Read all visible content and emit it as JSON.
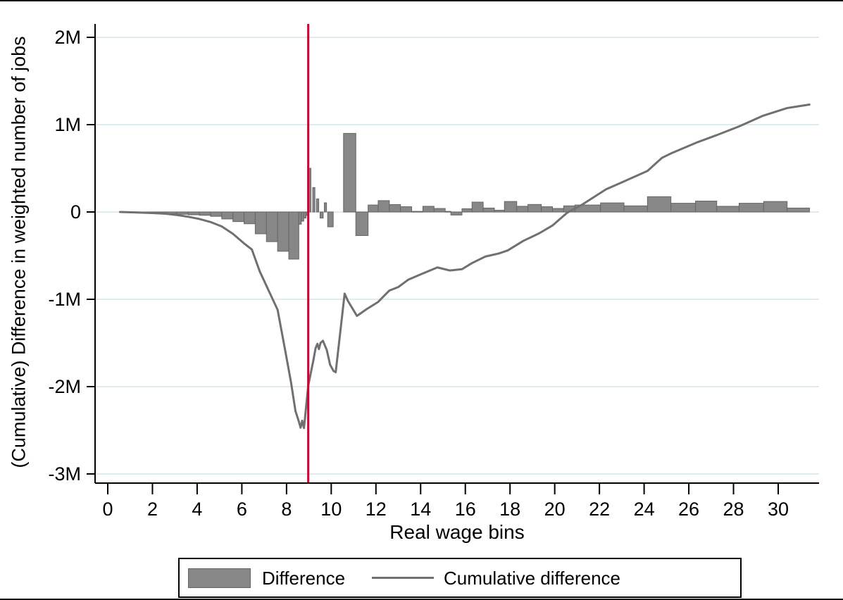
{
  "figure": {
    "y_axis_title": "(Cumulative) Difference in weighted number of jobs",
    "x_axis_title": "Real wage bins",
    "legend": {
      "bar_label": "Difference",
      "line_label": "Cumulative difference"
    }
  },
  "colors": {
    "bar_fill": "#878787",
    "bar_stroke": "#666666",
    "cumulative_line": "#707070",
    "reference_line": "#c10534",
    "grid": "#deebf0",
    "axis": "#000000",
    "text": "#000000"
  },
  "chart_data": {
    "type": "bar",
    "subtype": "histogram with cumulative line overlay",
    "title": "",
    "xlabel": "Real wage bins",
    "ylabel": "(Cumulative) Difference in weighted number of jobs",
    "units": "millions of jobs",
    "xlim": [
      -0.57,
      31.83
    ],
    "ylim": [
      -3.105,
      2.153
    ],
    "grid": true,
    "legend_position": "bottom",
    "x_ticks": [
      0,
      2,
      4,
      6,
      8,
      10,
      12,
      14,
      16,
      18,
      20,
      22,
      24,
      26,
      28,
      30
    ],
    "y_ticks": [
      {
        "value": 2,
        "label": "2M"
      },
      {
        "value": 1,
        "label": "1M"
      },
      {
        "value": 0,
        "label": "0"
      },
      {
        "value": -1,
        "label": "-1M"
      },
      {
        "value": -2,
        "label": "-2M"
      },
      {
        "value": -3,
        "label": "-3M"
      }
    ],
    "reference_line_x": 8.97,
    "series": [
      {
        "name": "Difference",
        "type": "bar"
      },
      {
        "name": "Cumulative difference",
        "type": "line"
      }
    ],
    "bars": [
      {
        "x0": 0.6,
        "x1": 1.1,
        "v": -0.008
      },
      {
        "x0": 1.1,
        "x1": 1.6,
        "v": -0.011
      },
      {
        "x0": 1.6,
        "x1": 2.1,
        "v": -0.014
      },
      {
        "x0": 2.1,
        "x1": 2.6,
        "v": -0.016
      },
      {
        "x0": 2.6,
        "x1": 3.1,
        "v": -0.02
      },
      {
        "x0": 3.1,
        "x1": 3.6,
        "v": -0.026
      },
      {
        "x0": 3.6,
        "x1": 4.1,
        "v": -0.032
      },
      {
        "x0": 4.1,
        "x1": 4.6,
        "v": -0.038
      },
      {
        "x0": 4.6,
        "x1": 5.1,
        "v": -0.05
      },
      {
        "x0": 5.1,
        "x1": 5.6,
        "v": -0.08
      },
      {
        "x0": 5.6,
        "x1": 6.1,
        "v": -0.11
      },
      {
        "x0": 6.1,
        "x1": 6.6,
        "v": -0.135
      },
      {
        "x0": 6.6,
        "x1": 7.1,
        "v": -0.25
      },
      {
        "x0": 7.1,
        "x1": 7.6,
        "v": -0.34
      },
      {
        "x0": 7.6,
        "x1": 8.1,
        "v": -0.45
      },
      {
        "x0": 8.1,
        "x1": 8.55,
        "v": -0.54
      },
      {
        "x0": 8.55,
        "x1": 8.66,
        "v": -0.14
      },
      {
        "x0": 8.66,
        "x1": 8.77,
        "v": -0.105
      },
      {
        "x0": 8.77,
        "x1": 8.87,
        "v": -0.07
      },
      {
        "x0": 8.87,
        "x1": 8.96,
        "v": -0.04
      },
      {
        "x0": 8.99,
        "x1": 9.09,
        "v": 0.5
      },
      {
        "x0": 9.17,
        "x1": 9.27,
        "v": 0.28
      },
      {
        "x0": 9.34,
        "x1": 9.44,
        "v": 0.15
      },
      {
        "x0": 9.5,
        "x1": 9.64,
        "v": -0.07
      },
      {
        "x0": 9.69,
        "x1": 9.79,
        "v": 0.105
      },
      {
        "x0": 9.84,
        "x1": 10.09,
        "v": -0.17
      },
      {
        "x0": 10.55,
        "x1": 11.1,
        "v": 0.9
      },
      {
        "x0": 11.1,
        "x1": 11.65,
        "v": -0.27
      },
      {
        "x0": 11.65,
        "x1": 12.1,
        "v": 0.08
      },
      {
        "x0": 12.1,
        "x1": 12.6,
        "v": 0.13
      },
      {
        "x0": 12.6,
        "x1": 13.1,
        "v": 0.085
      },
      {
        "x0": 13.1,
        "x1": 13.6,
        "v": 0.06
      },
      {
        "x0": 13.6,
        "x1": 14.1,
        "v": 0.007
      },
      {
        "x0": 14.1,
        "x1": 14.6,
        "v": 0.065
      },
      {
        "x0": 14.6,
        "x1": 15.1,
        "v": 0.04
      },
      {
        "x0": 15.1,
        "x1": 15.35,
        "v": 0.007
      },
      {
        "x0": 15.35,
        "x1": 15.85,
        "v": -0.035
      },
      {
        "x0": 15.85,
        "x1": 16.3,
        "v": 0.037
      },
      {
        "x0": 16.3,
        "x1": 16.8,
        "v": 0.113
      },
      {
        "x0": 16.8,
        "x1": 17.3,
        "v": 0.045
      },
      {
        "x0": 17.3,
        "x1": 17.75,
        "v": 0.02
      },
      {
        "x0": 17.75,
        "x1": 18.3,
        "v": 0.12
      },
      {
        "x0": 18.3,
        "x1": 18.8,
        "v": 0.065
      },
      {
        "x0": 18.8,
        "x1": 19.4,
        "v": 0.086
      },
      {
        "x0": 19.4,
        "x1": 19.9,
        "v": 0.06
      },
      {
        "x0": 19.9,
        "x1": 20.4,
        "v": 0.04
      },
      {
        "x0": 20.4,
        "x1": 20.9,
        "v": 0.07
      },
      {
        "x0": 20.9,
        "x1": 22.05,
        "v": 0.08
      },
      {
        "x0": 22.05,
        "x1": 23.1,
        "v": 0.104
      },
      {
        "x0": 23.1,
        "x1": 24.15,
        "v": 0.07
      },
      {
        "x0": 24.15,
        "x1": 25.2,
        "v": 0.175
      },
      {
        "x0": 25.2,
        "x1": 26.3,
        "v": 0.1
      },
      {
        "x0": 26.3,
        "x1": 27.25,
        "v": 0.125
      },
      {
        "x0": 27.25,
        "x1": 28.25,
        "v": 0.065
      },
      {
        "x0": 28.25,
        "x1": 29.35,
        "v": 0.1
      },
      {
        "x0": 29.35,
        "x1": 30.4,
        "v": 0.12
      },
      {
        "x0": 30.4,
        "x1": 31.4,
        "v": 0.045
      }
    ],
    "cumulative_line": [
      [
        0.55,
        0
      ],
      [
        1.2,
        -0.005
      ],
      [
        2.0,
        -0.012
      ],
      [
        2.6,
        -0.02
      ],
      [
        3.1,
        -0.035
      ],
      [
        3.6,
        -0.055
      ],
      [
        4.1,
        -0.08
      ],
      [
        4.6,
        -0.115
      ],
      [
        5.1,
        -0.165
      ],
      [
        5.6,
        -0.25
      ],
      [
        6.1,
        -0.36
      ],
      [
        6.45,
        -0.43
      ],
      [
        6.8,
        -0.68
      ],
      [
        7.2,
        -0.9
      ],
      [
        7.6,
        -1.12
      ],
      [
        7.95,
        -1.6
      ],
      [
        8.2,
        -1.95
      ],
      [
        8.4,
        -2.28
      ],
      [
        8.55,
        -2.4
      ],
      [
        8.63,
        -2.47
      ],
      [
        8.7,
        -2.39
      ],
      [
        8.78,
        -2.475
      ],
      [
        8.97,
        -1.99
      ],
      [
        9.2,
        -1.7
      ],
      [
        9.3,
        -1.56
      ],
      [
        9.38,
        -1.51
      ],
      [
        9.45,
        -1.57
      ],
      [
        9.52,
        -1.5
      ],
      [
        9.63,
        -1.475
      ],
      [
        9.8,
        -1.58
      ],
      [
        9.95,
        -1.75
      ],
      [
        10.1,
        -1.82
      ],
      [
        10.2,
        -1.835
      ],
      [
        10.6,
        -0.935
      ],
      [
        10.75,
        -1.02
      ],
      [
        11.15,
        -1.19
      ],
      [
        11.6,
        -1.11
      ],
      [
        12.1,
        -1.03
      ],
      [
        12.6,
        -0.9
      ],
      [
        13.0,
        -0.86
      ],
      [
        13.45,
        -0.775
      ],
      [
        14.0,
        -0.715
      ],
      [
        14.75,
        -0.635
      ],
      [
        15.3,
        -0.67
      ],
      [
        15.85,
        -0.655
      ],
      [
        16.3,
        -0.585
      ],
      [
        16.9,
        -0.51
      ],
      [
        17.5,
        -0.475
      ],
      [
        17.9,
        -0.44
      ],
      [
        18.6,
        -0.33
      ],
      [
        19.3,
        -0.245
      ],
      [
        19.9,
        -0.155
      ],
      [
        20.55,
        -0.01
      ],
      [
        21.2,
        0.08
      ],
      [
        22.3,
        0.26
      ],
      [
        23.1,
        0.35
      ],
      [
        24.15,
        0.47
      ],
      [
        24.8,
        0.62
      ],
      [
        25.2,
        0.67
      ],
      [
        26.4,
        0.8
      ],
      [
        27.25,
        0.88
      ],
      [
        28.25,
        0.98
      ],
      [
        29.3,
        1.1
      ],
      [
        30.4,
        1.19
      ],
      [
        31.4,
        1.23
      ]
    ]
  }
}
